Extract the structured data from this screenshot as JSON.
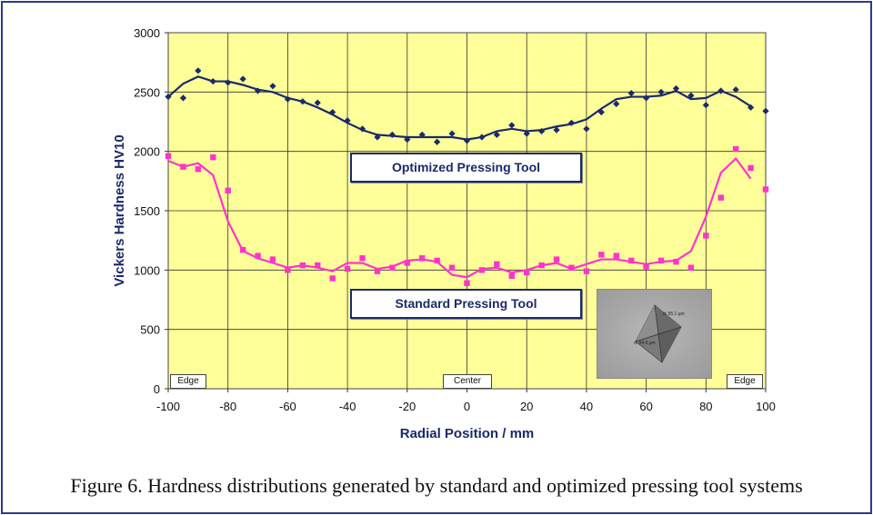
{
  "chart_data": {
    "type": "scatter",
    "title": "",
    "xlabel": "Radial Position / mm",
    "ylabel": "Vickers Hardness HV10",
    "xlim": [
      -100,
      100
    ],
    "ylim": [
      0,
      3000
    ],
    "xticks": [
      -100,
      -80,
      -60,
      -40,
      -20,
      0,
      20,
      40,
      60,
      80,
      100
    ],
    "yticks": [
      0,
      500,
      1000,
      1500,
      2000,
      2500,
      3000
    ],
    "grid": true,
    "series": [
      {
        "name": "Optimized Pressing Tool",
        "color": "#1a2a6c",
        "marker": "diamond",
        "x": [
          -100,
          -95,
          -90,
          -85,
          -80,
          -75,
          -70,
          -65,
          -60,
          -55,
          -50,
          -45,
          -40,
          -35,
          -30,
          -25,
          -20,
          -15,
          -10,
          -5,
          0,
          5,
          10,
          15,
          20,
          25,
          30,
          35,
          40,
          45,
          50,
          55,
          60,
          65,
          70,
          75,
          80,
          85,
          90,
          95,
          100
        ],
        "points": [
          2460,
          2450,
          2680,
          2590,
          2580,
          2610,
          2510,
          2550,
          2440,
          2420,
          2410,
          2330,
          2260,
          2190,
          2120,
          2140,
          2100,
          2140,
          2080,
          2150,
          2090,
          2120,
          2140,
          2220,
          2150,
          2170,
          2180,
          2240,
          2190,
          2330,
          2400,
          2490,
          2450,
          2500,
          2530,
          2470,
          2390,
          2510,
          2520,
          2370,
          2340
        ],
        "trend": [
          2460,
          2570,
          2630,
          2590,
          2590,
          2560,
          2520,
          2500,
          2450,
          2420,
          2370,
          2310,
          2240,
          2180,
          2140,
          2130,
          2120,
          2120,
          2120,
          2120,
          2100,
          2120,
          2170,
          2190,
          2170,
          2180,
          2210,
          2230,
          2270,
          2360,
          2440,
          2460,
          2460,
          2470,
          2510,
          2440,
          2450,
          2510,
          2460,
          2380
        ]
      },
      {
        "name": "Standard Pressing Tool",
        "color": "#ff33cc",
        "marker": "square",
        "x": [
          -100,
          -95,
          -90,
          -85,
          -80,
          -75,
          -70,
          -65,
          -60,
          -55,
          -50,
          -45,
          -40,
          -35,
          -30,
          -25,
          -20,
          -15,
          -10,
          -5,
          0,
          5,
          10,
          15,
          20,
          25,
          30,
          35,
          40,
          45,
          50,
          55,
          60,
          65,
          70,
          75,
          80,
          85,
          90,
          95,
          100
        ],
        "points": [
          1960,
          1870,
          1850,
          1950,
          1670,
          1170,
          1120,
          1090,
          1000,
          1040,
          1040,
          930,
          1010,
          1100,
          990,
          1020,
          1060,
          1100,
          1080,
          1020,
          890,
          1000,
          1050,
          950,
          980,
          1040,
          1090,
          1020,
          990,
          1130,
          1120,
          1080,
          1030,
          1080,
          1070,
          1020,
          1290,
          1610,
          2020,
          1860,
          1680
        ],
        "trend": [
          1920,
          1870,
          1900,
          1800,
          1410,
          1160,
          1100,
          1060,
          1020,
          1040,
          1020,
          990,
          1060,
          1060,
          1010,
          1030,
          1080,
          1090,
          1070,
          960,
          940,
          1010,
          1020,
          980,
          1000,
          1040,
          1060,
          1010,
          1050,
          1090,
          1090,
          1070,
          1050,
          1070,
          1080,
          1160,
          1450,
          1820,
          1940,
          1770
        ]
      }
    ],
    "annotations": {
      "edge_left": "Edge",
      "center": "Center",
      "edge_right": "Edge"
    },
    "inset_image": {
      "kind": "Vickers indentation micrograph",
      "label_top": "d: 95.1 µm",
      "label_left": "d: 94.9 µm"
    }
  },
  "caption": "Figure 6. Hardness distributions generated by standard and optimized pressing tool systems"
}
